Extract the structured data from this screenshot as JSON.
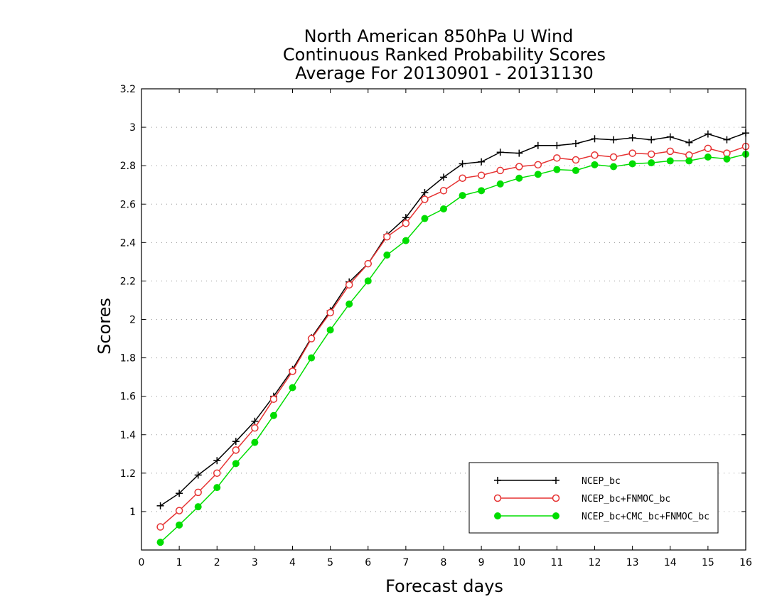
{
  "chart_data": {
    "type": "line",
    "title_lines": [
      "North American 850hPa U Wind",
      "Continuous Ranked Probability Scores",
      "Average For 20130901 - 20131130"
    ],
    "xlabel": "Forecast days",
    "ylabel": "Scores",
    "xlim": [
      0,
      16
    ],
    "ylim": [
      0.8,
      3.2
    ],
    "x_ticks": [
      0,
      1,
      2,
      3,
      4,
      5,
      6,
      7,
      8,
      9,
      10,
      11,
      12,
      13,
      14,
      15,
      16
    ],
    "y_ticks": [
      1,
      1.2,
      1.4,
      1.6,
      1.8,
      2,
      2.2,
      2.4,
      2.6,
      2.8,
      3,
      3.2
    ],
    "grid": "horizontal-dotted",
    "legend_position": "bottom-right",
    "x": [
      0.5,
      1,
      1.5,
      2,
      2.5,
      3,
      3.5,
      4,
      4.5,
      5,
      5.5,
      6,
      6.5,
      7,
      7.5,
      8,
      8.5,
      9,
      9.5,
      10,
      10.5,
      11,
      11.5,
      12,
      12.5,
      13,
      13.5,
      14,
      14.5,
      15,
      15.5,
      16
    ],
    "series": [
      {
        "name": "NCEP_bc",
        "color": "#000000",
        "marker": "plus",
        "values": [
          1.03,
          1.095,
          1.19,
          1.265,
          1.365,
          1.47,
          1.6,
          1.74,
          1.905,
          2.045,
          2.195,
          2.29,
          2.44,
          2.53,
          2.66,
          2.74,
          2.81,
          2.82,
          2.87,
          2.865,
          2.905,
          2.905,
          2.915,
          2.94,
          2.935,
          2.945,
          2.935,
          2.95,
          2.92,
          2.965,
          2.935,
          2.97
        ]
      },
      {
        "name": "NCEP_bc+FNMOC_bc",
        "color": "#e63232",
        "marker": "open-circle",
        "values": [
          0.92,
          1.005,
          1.1,
          1.2,
          1.32,
          1.435,
          1.585,
          1.73,
          1.9,
          2.035,
          2.18,
          2.29,
          2.43,
          2.5,
          2.625,
          2.67,
          2.735,
          2.75,
          2.775,
          2.795,
          2.805,
          2.84,
          2.83,
          2.855,
          2.845,
          2.865,
          2.86,
          2.875,
          2.855,
          2.89,
          2.865,
          2.9
        ]
      },
      {
        "name": "NCEP_bc+CMC_bc+FNMOC_bc",
        "color": "#00dd00",
        "marker": "filled-circle",
        "values": [
          0.84,
          0.93,
          1.025,
          1.125,
          1.25,
          1.36,
          1.5,
          1.645,
          1.8,
          1.945,
          2.08,
          2.2,
          2.335,
          2.41,
          2.525,
          2.575,
          2.645,
          2.67,
          2.705,
          2.735,
          2.755,
          2.78,
          2.775,
          2.805,
          2.795,
          2.81,
          2.815,
          2.825,
          2.825,
          2.845,
          2.835,
          2.86
        ]
      }
    ]
  }
}
